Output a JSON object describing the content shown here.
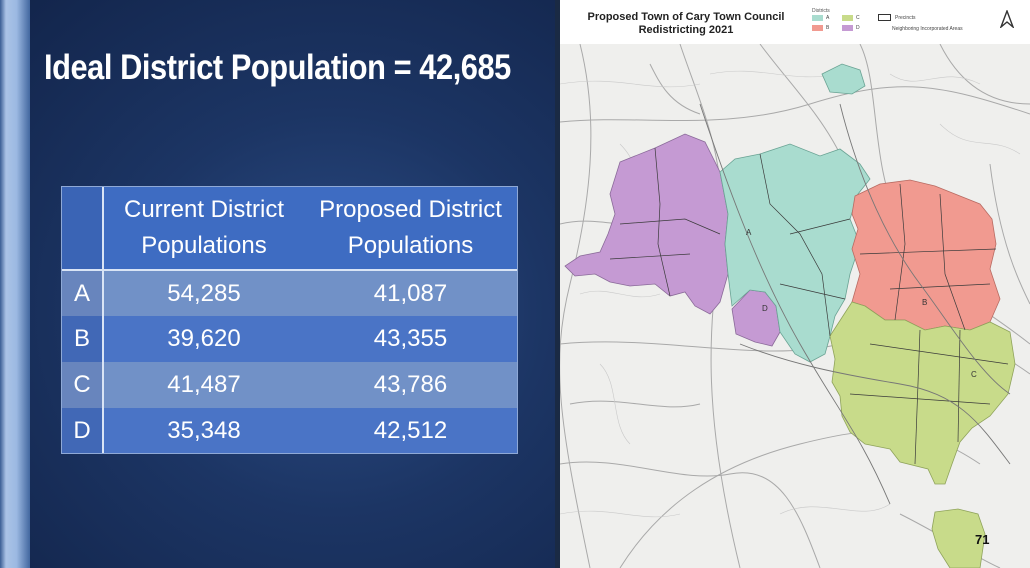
{
  "slide": {
    "title": "Ideal District Population = 42,685",
    "table": {
      "headers": [
        "",
        "Current District\nPopulations",
        "Proposed District\nPopulations"
      ],
      "rows": [
        {
          "district": "A",
          "current": "54,285",
          "proposed": "41,087"
        },
        {
          "district": "B",
          "current": "39,620",
          "proposed": "43,355"
        },
        {
          "district": "C",
          "current": "41,487",
          "proposed": "43,786"
        },
        {
          "district": "D",
          "current": "35,348",
          "proposed": "42,512"
        }
      ]
    }
  },
  "map": {
    "title_line1": "Proposed Town of Cary Town Council",
    "title_line2": "Redistricting 2021",
    "legend": {
      "districts_label": "Districts",
      "items": [
        {
          "label": "A",
          "color": "#a9dccf"
        },
        {
          "label": "B",
          "color": "#f19a90"
        },
        {
          "label": "C",
          "color": "#c8db8a"
        },
        {
          "label": "D",
          "color": "#c59ad3"
        }
      ],
      "precincts_label": "Precincts",
      "neighboring_label": "Neighboring Incorporated Areas"
    },
    "district_labels": {
      "a": "A",
      "b": "B",
      "c": "C",
      "d": "D"
    },
    "page_number": "71"
  }
}
